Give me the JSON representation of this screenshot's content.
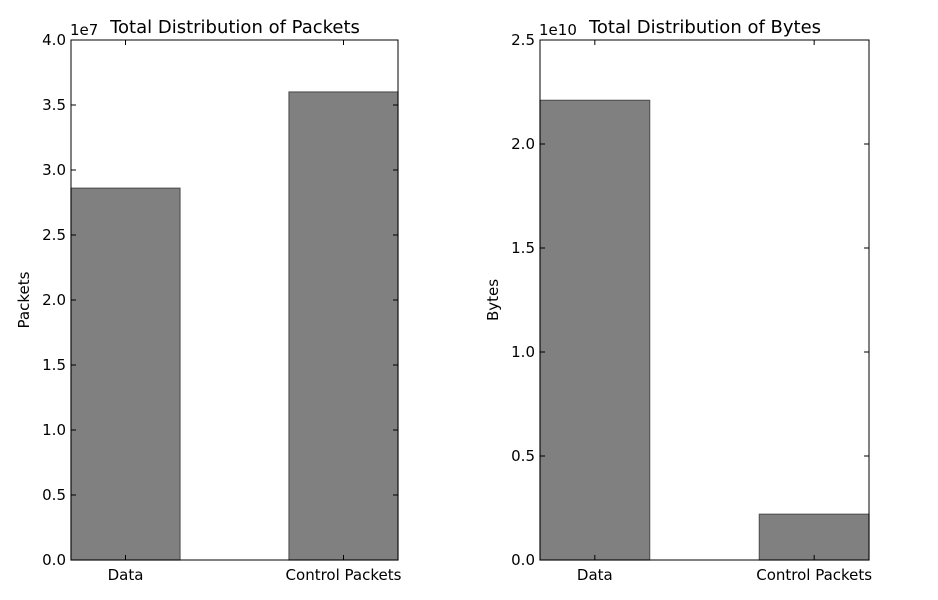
{
  "colors": {
    "bar_fill": "#808080",
    "bar_edge": "#555555",
    "background": "#ffffff"
  },
  "chart_data": [
    {
      "type": "bar",
      "title": "Total Distribution of Packets",
      "xlabel": "",
      "ylabel": "Packets",
      "categories": [
        "Data",
        "Control Packets"
      ],
      "values": [
        28600000,
        36000000
      ],
      "ylim": [
        0,
        40000000
      ],
      "offset_label": "1e7",
      "yticks": [
        0,
        5000000,
        10000000,
        15000000,
        20000000,
        25000000,
        30000000,
        35000000,
        40000000
      ],
      "ytick_labels": [
        "0.0",
        "0.5",
        "1.0",
        "1.5",
        "2.0",
        "2.5",
        "3.0",
        "3.5",
        "4.0"
      ],
      "grid": false
    },
    {
      "type": "bar",
      "title": "Total Distribution of Bytes",
      "xlabel": "",
      "ylabel": "Bytes",
      "categories": [
        "Data",
        "Control Packets"
      ],
      "values": [
        22100000000,
        2200000000
      ],
      "ylim": [
        0,
        25000000000
      ],
      "offset_label": "1e10",
      "yticks": [
        0,
        5000000000,
        10000000000,
        15000000000,
        20000000000,
        25000000000
      ],
      "ytick_labels": [
        "0.0",
        "0.5",
        "1.0",
        "1.5",
        "2.0",
        "2.5"
      ],
      "grid": false
    }
  ]
}
